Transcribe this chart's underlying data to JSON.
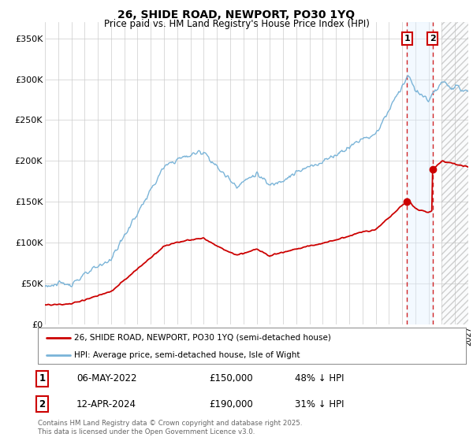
{
  "title": "26, SHIDE ROAD, NEWPORT, PO30 1YQ",
  "subtitle": "Price paid vs. HM Land Registry's House Price Index (HPI)",
  "ylim": [
    0,
    370000
  ],
  "yticks": [
    0,
    50000,
    100000,
    150000,
    200000,
    250000,
    300000,
    350000
  ],
  "ytick_labels": [
    "£0",
    "£50K",
    "£100K",
    "£150K",
    "£200K",
    "£250K",
    "£300K",
    "£350K"
  ],
  "hpi_color": "#7ab4d8",
  "price_color": "#cc0000",
  "marker1_x": 2022.37,
  "marker2_x": 2024.29,
  "marker1_price": 150000,
  "marker2_price": 190000,
  "legend_label1": "26, SHIDE ROAD, NEWPORT, PO30 1YQ (semi-detached house)",
  "legend_label2": "HPI: Average price, semi-detached house, Isle of Wight",
  "table_row1": [
    "1",
    "06-MAY-2022",
    "£150,000",
    "48% ↓ HPI"
  ],
  "table_row2": [
    "2",
    "12-APR-2024",
    "£190,000",
    "31% ↓ HPI"
  ],
  "footnote": "Contains HM Land Registry data © Crown copyright and database right 2025.\nThis data is licensed under the Open Government Licence v3.0.",
  "bg_color": "#ffffff",
  "grid_color": "#cccccc",
  "shade_color": "#ddeeff",
  "hatch_color": "#cccccc",
  "xlim_start": 1995,
  "xlim_end": 2027
}
